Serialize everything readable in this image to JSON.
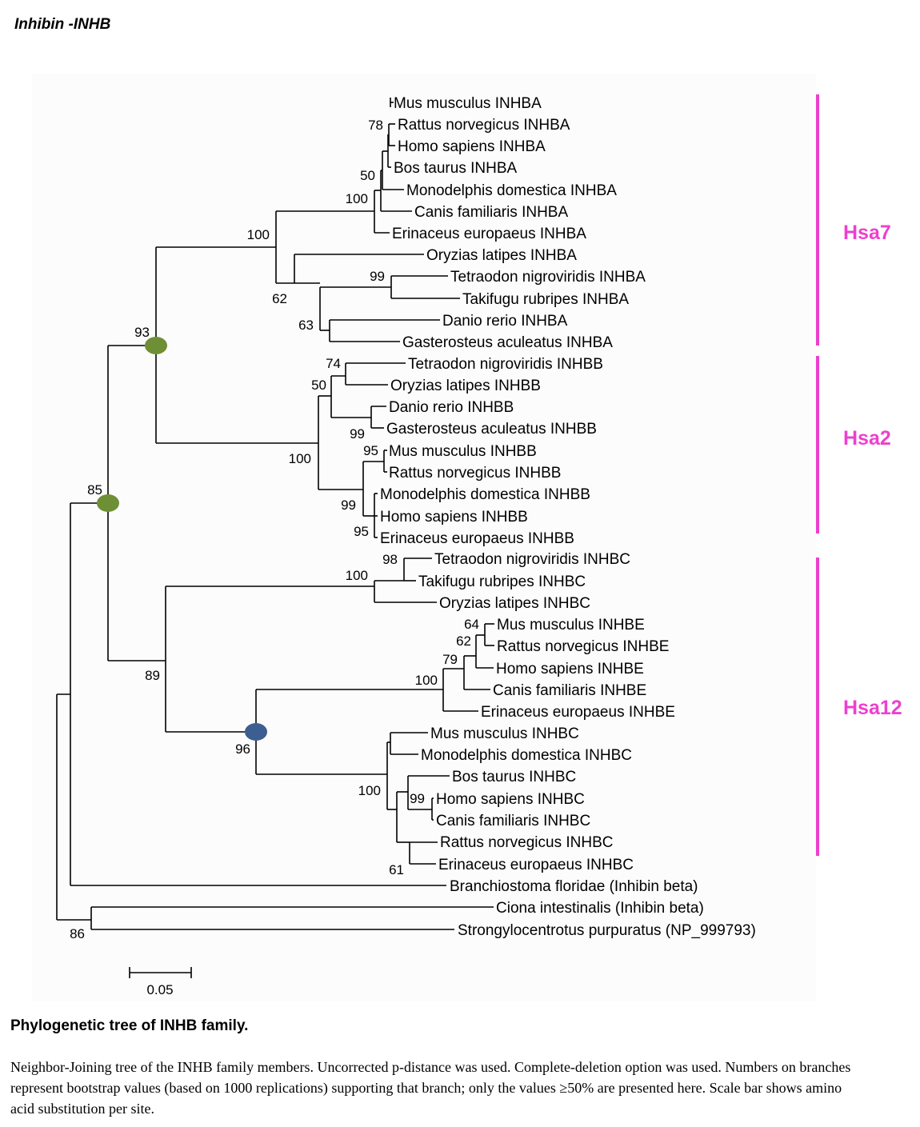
{
  "page_title": "Inhibin -INHB",
  "taxa": [
    "Mus musculus INHBA",
    "Rattus norvegicus INHBA",
    "Homo sapiens INHBA",
    "Bos taurus  INHBA",
    "Monodelphis domestica INHBA",
    "Canis familiaris INHBA",
    "Erinaceus europaeus  INHBA",
    "Oryzias latipes INHBA",
    "Tetraodon nigroviridis INHBA",
    "Takifugu rubripes INHBA",
    "Danio rerio INHBA",
    "Gasterosteus aculeatus  INHBA",
    "Tetraodon nigroviridis INHBB",
    "Oryzias latipes INHBB",
    "Danio rerio INHBB",
    "Gasterosteus aculeatus  INHBB",
    "Mus musculus INHBB",
    "Rattus norvegicus INHBB",
    "Monodelphis domestica INHBB",
    "Homo sapiens  INHBB",
    "Erinaceus europaeus  INHBB",
    "Tetraodon nigroviridis INHBC",
    "Takifugu rubripes INHBC",
    "Oryzias latipes INHBC",
    "Mus musculus INHBE",
    "Rattus norvegicus INHBE",
    "Homo sapiens  INHBE",
    "Canis familiaris INHBE",
    "Erinaceus europaeus  INHBE",
    "Mus musculus INHBC",
    "Monodelphis domestica INHBC",
    "Bos taurus  INHBC",
    "Homo sapiens  INHBC",
    "Canis familiaris INHBC",
    "Rattus norvegicus INHBC",
    "Erinaceus europaeus  INHBC",
    "Branchiostoma floridae (Inhibin beta)",
    "Ciona intestinalis  (Inhibin beta)",
    "Strongylocentrotus purpuratus (NP_999793)"
  ],
  "bootstrap_values": [
    "78",
    "50",
    "100",
    "100",
    "99",
    "62",
    "63",
    "93",
    "74",
    "50",
    "99",
    "95",
    "100",
    "99",
    "95",
    "85",
    "98",
    "100",
    "64",
    "62",
    "79",
    "100",
    "89",
    "96",
    "99",
    "100",
    "61",
    "86"
  ],
  "groups": [
    {
      "label": "Hsa7",
      "color": "#ee3fcf"
    },
    {
      "label": "Hsa2",
      "color": "#ee3fcf"
    },
    {
      "label": "Hsa12",
      "color": "#ee3fcf"
    }
  ],
  "node_marker_colors": {
    "green": "#6e8f35",
    "blue": "#3c5e90"
  },
  "scale_bar": {
    "label": "0.05"
  },
  "caption": {
    "title": "Phylogenetic tree of INHB family.",
    "text": "Neighbor-Joining tree of the INHB family members. Uncorrected p-distance was used. Complete-deletion option was used. Numbers on branches represent bootstrap values (based on 1000 replications) supporting that branch; only the values ≥50% are presented here. Scale bar shows amino acid substitution per site."
  }
}
